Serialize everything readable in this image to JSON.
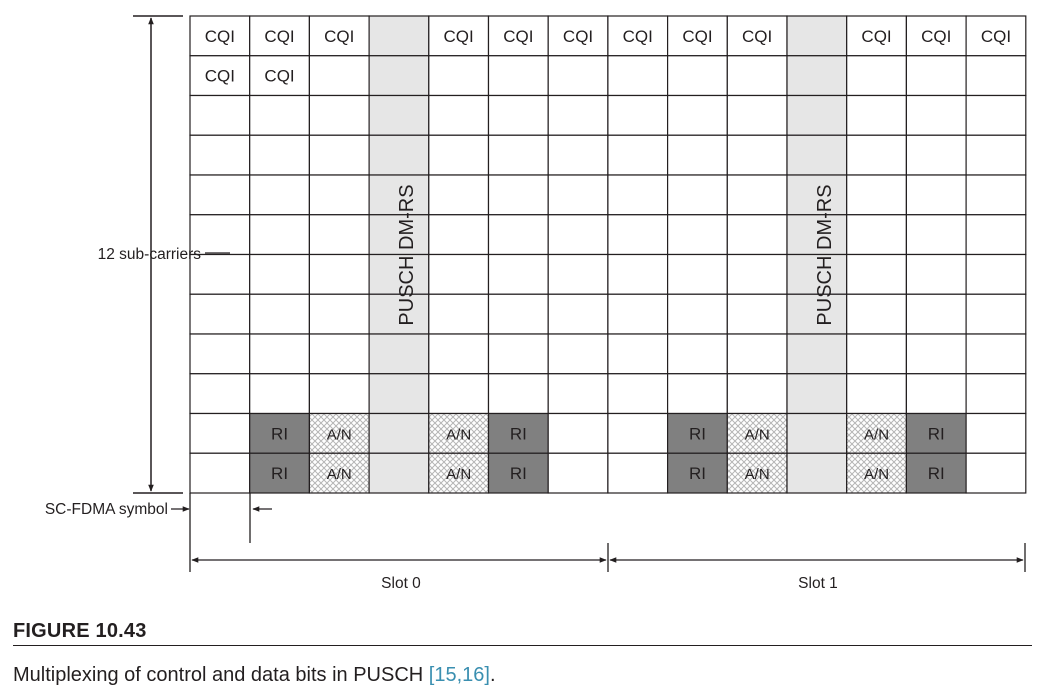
{
  "grid": {
    "cells": [
      [
        "CQI",
        "CQI",
        "CQI",
        "",
        "CQI",
        "CQI",
        "CQI",
        "CQI",
        "CQI",
        "CQI",
        "",
        "CQI",
        "CQI",
        "CQI"
      ],
      [
        "CQI",
        "CQI",
        "",
        "",
        "",
        "",
        "",
        "",
        "",
        "",
        "",
        "",
        "",
        ""
      ],
      [
        "",
        "",
        "",
        "",
        "",
        "",
        "",
        "",
        "",
        "",
        "",
        "",
        "",
        ""
      ],
      [
        "",
        "",
        "",
        "",
        "",
        "",
        "",
        "",
        "",
        "",
        "",
        "",
        "",
        ""
      ],
      [
        "",
        "",
        "",
        "",
        "",
        "",
        "",
        "",
        "",
        "",
        "",
        "",
        "",
        ""
      ],
      [
        "",
        "",
        "",
        "",
        "",
        "",
        "",
        "",
        "",
        "",
        "",
        "",
        "",
        ""
      ],
      [
        "",
        "",
        "",
        "",
        "",
        "",
        "",
        "",
        "",
        "",
        "",
        "",
        "",
        ""
      ],
      [
        "",
        "",
        "",
        "",
        "",
        "",
        "",
        "",
        "",
        "",
        "",
        "",
        "",
        ""
      ],
      [
        "",
        "",
        "",
        "",
        "",
        "",
        "",
        "",
        "",
        "",
        "",
        "",
        "",
        ""
      ],
      [
        "",
        "",
        "",
        "",
        "",
        "",
        "",
        "",
        "",
        "",
        "",
        "",
        "",
        ""
      ],
      [
        "",
        "RI",
        "A/N",
        "",
        "A/N",
        "RI",
        "",
        "",
        "RI",
        "A/N",
        "",
        "A/N",
        "RI",
        ""
      ],
      [
        "",
        "RI",
        "A/N",
        "",
        "A/N",
        "RI",
        "",
        "",
        "RI",
        "A/N",
        "",
        "A/N",
        "RI",
        ""
      ]
    ],
    "dmrs_label": "PUSCH DM-RS",
    "dmrs_columns": [
      3,
      10
    ],
    "colors": {
      "ri_fill": "#808080",
      "dmrs_fill": "#e6e6e6",
      "an_hatch": "#c9c9c9",
      "line": "#231f20"
    }
  },
  "labels": {
    "subcarriers": "12 sub-carriers",
    "symbol": "SC-FDMA symbol",
    "slot0": "Slot 0",
    "slot1": "Slot 1"
  },
  "figure": {
    "number": "FIGURE 10.43",
    "caption_text": "Multiplexing of control and data bits in PUSCH ",
    "caption_ref": "[15,16]",
    "caption_end": "."
  }
}
